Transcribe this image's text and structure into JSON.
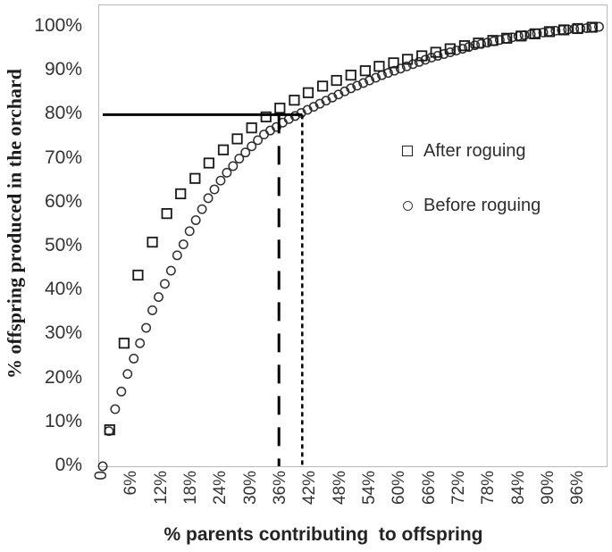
{
  "figure": {
    "y_axis": {
      "title": "% offspring produced in the orchard",
      "tick_labels": [
        "0%",
        "10%",
        "20%",
        "30%",
        "40%",
        "50%",
        "60%",
        "70%",
        "80%",
        "90%",
        "100%"
      ],
      "tick_values": [
        0,
        10,
        20,
        30,
        40,
        50,
        60,
        70,
        80,
        90,
        100
      ],
      "range": [
        0,
        100
      ]
    },
    "x_axis": {
      "title": "% parents contributing  to offspring",
      "tick_labels": [
        "0",
        "6%",
        "12%",
        "18%",
        "24%",
        "30%",
        "36%",
        "42%",
        "48%",
        "54%",
        "60%",
        "66%",
        "72%",
        "78%",
        "84%",
        "90%",
        "96%"
      ],
      "tick_values": [
        0,
        6,
        12,
        18,
        24,
        30,
        36,
        42,
        48,
        54,
        60,
        66,
        72,
        78,
        84,
        90,
        96
      ],
      "range": [
        0,
        100
      ]
    },
    "legend": {
      "items": [
        {
          "label": "After roguing",
          "marker": "square-outline-icon"
        },
        {
          "label": "Before roguing",
          "marker": "circle-outline-icon"
        }
      ]
    }
  },
  "colors": {
    "marker_stroke": "#1a1a1a",
    "circle_stroke": "#2e2e2e",
    "axis_frame": "#b9b9b9",
    "annotation_line": "#000000",
    "text": "#333333",
    "background": "#ffffff"
  },
  "chart_data": {
    "type": "scatter",
    "title": "",
    "xlabel": "% parents contributing  to offspring",
    "ylabel": "% offspring produced in the orchard",
    "xlim": [
      0,
      103
    ],
    "ylim": [
      0,
      105
    ],
    "grid": false,
    "legend_position": "center-right",
    "series": [
      {
        "name": "Before roguing",
        "marker": "circle",
        "points": [
          [
            0,
            0
          ],
          [
            1.25,
            8
          ],
          [
            2.5,
            13
          ],
          [
            3.75,
            17
          ],
          [
            5,
            21
          ],
          [
            6.25,
            24.5
          ],
          [
            7.5,
            28
          ],
          [
            8.75,
            31.5
          ],
          [
            10,
            35.5
          ],
          [
            11.25,
            38.5
          ],
          [
            12.5,
            41.5
          ],
          [
            13.75,
            44.5
          ],
          [
            15,
            48
          ],
          [
            16.25,
            50.5
          ],
          [
            17.5,
            53.5
          ],
          [
            18.75,
            56
          ],
          [
            20,
            58.5
          ],
          [
            21.25,
            61
          ],
          [
            22.5,
            63
          ],
          [
            23.75,
            65
          ],
          [
            25,
            66.8
          ],
          [
            26.25,
            68.3
          ],
          [
            27.5,
            70
          ],
          [
            28.75,
            71.4
          ],
          [
            30,
            72.8
          ],
          [
            31.25,
            74.2
          ],
          [
            32.5,
            75.5
          ],
          [
            33.75,
            76.4
          ],
          [
            35,
            77.2
          ],
          [
            36.25,
            78.2
          ],
          [
            37.5,
            79
          ],
          [
            38.75,
            79.7
          ],
          [
            40,
            80.4
          ],
          [
            41.25,
            81.1
          ],
          [
            42.5,
            81.8
          ],
          [
            43.75,
            82.5
          ],
          [
            45,
            83.2
          ],
          [
            46.25,
            83.9
          ],
          [
            47.5,
            84.6
          ],
          [
            48.75,
            85.3
          ],
          [
            50,
            86
          ],
          [
            51.25,
            86.6
          ],
          [
            52.5,
            87.2
          ],
          [
            53.75,
            87.8
          ],
          [
            55,
            88.4
          ],
          [
            56.25,
            89
          ],
          [
            57.5,
            89.5
          ],
          [
            58.75,
            90
          ],
          [
            60,
            90.5
          ],
          [
            61.25,
            91
          ],
          [
            62.5,
            91.5
          ],
          [
            63.75,
            92
          ],
          [
            65,
            92.5
          ],
          [
            66.25,
            93
          ],
          [
            67.5,
            93.4
          ],
          [
            68.75,
            93.8
          ],
          [
            70,
            94.2
          ],
          [
            71.25,
            94.6
          ],
          [
            72.5,
            95
          ],
          [
            73.75,
            95.4
          ],
          [
            75,
            95.8
          ],
          [
            76.25,
            96.1
          ],
          [
            77.5,
            96.4
          ],
          [
            78.75,
            96.7
          ],
          [
            80,
            97
          ],
          [
            81.25,
            97.3
          ],
          [
            82.5,
            97.6
          ],
          [
            83.75,
            97.9
          ],
          [
            85,
            98.1
          ],
          [
            86.25,
            98.3
          ],
          [
            87.5,
            98.5
          ],
          [
            88.75,
            98.7
          ],
          [
            90,
            98.9
          ],
          [
            91.25,
            99.1
          ],
          [
            92.5,
            99.3
          ],
          [
            93.75,
            99.4
          ],
          [
            95,
            99.5
          ],
          [
            96.25,
            99.6
          ],
          [
            97.5,
            99.7
          ],
          [
            98.75,
            99.85
          ],
          [
            100,
            100
          ]
        ]
      },
      {
        "name": "After roguing",
        "marker": "square",
        "points": [
          [
            1.4,
            8.3
          ],
          [
            4.3,
            28
          ],
          [
            7.1,
            43.5
          ],
          [
            10,
            51
          ],
          [
            12.9,
            57.5
          ],
          [
            15.7,
            62
          ],
          [
            18.6,
            65.5
          ],
          [
            21.4,
            69
          ],
          [
            24.3,
            72
          ],
          [
            27.1,
            74.5
          ],
          [
            30,
            77
          ],
          [
            32.9,
            79.5
          ],
          [
            35.7,
            81.5
          ],
          [
            38.6,
            83.3
          ],
          [
            41.4,
            85
          ],
          [
            44.3,
            86.5
          ],
          [
            47.1,
            87.8
          ],
          [
            50,
            89
          ],
          [
            52.9,
            90
          ],
          [
            55.7,
            91
          ],
          [
            58.6,
            91.8
          ],
          [
            61.4,
            92.6
          ],
          [
            64.3,
            93.4
          ],
          [
            67.1,
            94.2
          ],
          [
            70,
            95
          ],
          [
            72.9,
            95.7
          ],
          [
            75.7,
            96.3
          ],
          [
            78.6,
            96.9
          ],
          [
            81.4,
            97.4
          ],
          [
            84.3,
            97.9
          ],
          [
            87.1,
            98.4
          ],
          [
            90,
            98.9
          ],
          [
            92.9,
            99.3
          ],
          [
            95.7,
            99.6
          ],
          [
            98.6,
            99.9
          ]
        ]
      }
    ],
    "annotations": [
      {
        "type": "hline",
        "y": 80,
        "x_from": 0,
        "x_to": 40.2,
        "style": "solid"
      },
      {
        "type": "vline",
        "x": 35.5,
        "y_from": 0,
        "y_to": 80,
        "style": "long-dash"
      },
      {
        "type": "vline",
        "x": 40.2,
        "y_from": 0,
        "y_to": 80,
        "style": "dotted"
      }
    ]
  }
}
